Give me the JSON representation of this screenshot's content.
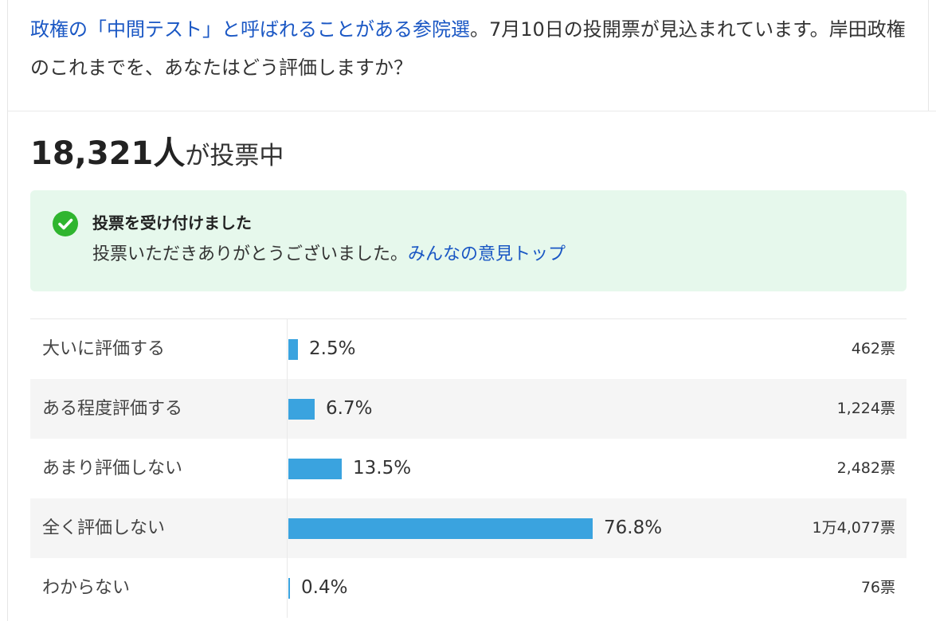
{
  "question": {
    "link_text": "政権の「中間テスト」と呼ばれることがある参院選",
    "rest_text": "。7月10日の投開票が見込まれています。岸田政権のこれまでを、あなたはどう評価しますか？"
  },
  "vote_count": {
    "number": "18,321人",
    "suffix": "が投票中"
  },
  "notice": {
    "title": "投票を受け付けました",
    "body": "投票いただきありがとうございました。",
    "link": "みんなの意見トップ",
    "colors": {
      "background": "#e6f8ec",
      "check": "#2fb52f"
    }
  },
  "results": [
    {
      "label": "大いに評価する",
      "percent_text": "2.5%",
      "percent": 2.5,
      "votes": "462票"
    },
    {
      "label": "ある程度評価する",
      "percent_text": "6.7%",
      "percent": 6.7,
      "votes": "1,224票"
    },
    {
      "label": "あまり評価しない",
      "percent_text": "13.5%",
      "percent": 13.5,
      "votes": "2,482票"
    },
    {
      "label": "全く評価しない",
      "percent_text": "76.8%",
      "percent": 76.8,
      "votes": "1万4,077票"
    },
    {
      "label": "わからない",
      "percent_text": "0.4%",
      "percent": 0.4,
      "votes": "76票"
    }
  ],
  "colors": {
    "bar": "#3aa3df",
    "link": "#1a57c4"
  }
}
